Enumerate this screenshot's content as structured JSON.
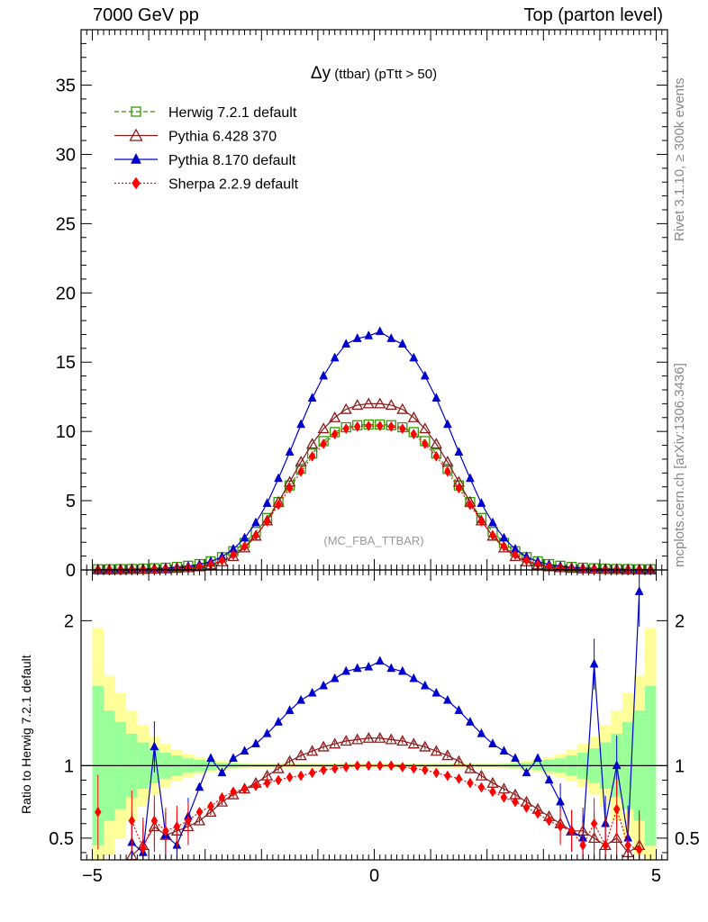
{
  "header": {
    "left": "7000 GeV pp",
    "right": "Top (parton level)"
  },
  "side_labels": {
    "rivet": "Rivet 3.1.10, ≥ 300k events",
    "mcplots": "mcplots.cern.ch [arXiv:1306.3436]"
  },
  "plot": {
    "title_symbol": "Δy",
    "title_rest": " (ttbar) (pTtt > 50)",
    "watermark": "(MC_FBA_TTBAR)",
    "ratio_ylabel": "Ratio to Herwig 7.2.1 default"
  },
  "chart_data": [
    {
      "type": "line",
      "panel": "main",
      "title": "Δy (ttbar) (pTtt > 50)",
      "xlabel": "",
      "ylabel": "",
      "xlim": [
        -5,
        5
      ],
      "ylim": [
        0,
        39
      ],
      "x_ticks": [
        "−5",
        "0",
        "5"
      ],
      "y_ticks": [
        "0",
        "5",
        "10",
        "15",
        "20",
        "25",
        "30",
        "35"
      ],
      "legend_position": "top-left",
      "x": [
        -4.9,
        -4.7,
        -4.5,
        -4.3,
        -4.1,
        -3.9,
        -3.7,
        -3.5,
        -3.3,
        -3.1,
        -2.9,
        -2.7,
        -2.5,
        -2.3,
        -2.1,
        -1.9,
        -1.7,
        -1.5,
        -1.3,
        -1.1,
        -0.9,
        -0.7,
        -0.5,
        -0.3,
        -0.1,
        0.1,
        0.3,
        0.5,
        0.7,
        0.9,
        1.1,
        1.3,
        1.5,
        1.7,
        1.9,
        2.1,
        2.3,
        2.5,
        2.7,
        2.9,
        3.1,
        3.3,
        3.5,
        3.7,
        3.9,
        4.1,
        4.3,
        4.5,
        4.7,
        4.9
      ],
      "series": [
        {
          "name": "Herwig 7.2.1 default",
          "color": "#339900",
          "marker": "open-square",
          "line": "dashed",
          "values": [
            0.05,
            0.05,
            0.06,
            0.07,
            0.09,
            0.12,
            0.16,
            0.22,
            0.3,
            0.42,
            0.62,
            0.92,
            1.35,
            1.95,
            2.75,
            3.75,
            4.9,
            6.1,
            7.3,
            8.4,
            9.3,
            9.95,
            10.3,
            10.45,
            10.5,
            10.5,
            10.45,
            10.3,
            9.95,
            9.3,
            8.4,
            7.3,
            6.1,
            4.9,
            3.75,
            2.75,
            1.95,
            1.35,
            0.92,
            0.62,
            0.42,
            0.3,
            0.22,
            0.16,
            0.12,
            0.09,
            0.07,
            0.06,
            0.05,
            0.05
          ]
        },
        {
          "name": "Pythia 6.428 370",
          "color": "#8b1a1a",
          "marker": "open-triangle",
          "line": "solid",
          "values": [
            0.02,
            0.02,
            0.03,
            0.04,
            0.05,
            0.07,
            0.09,
            0.12,
            0.17,
            0.24,
            0.37,
            0.6,
            0.98,
            1.6,
            2.45,
            3.55,
            4.9,
            6.35,
            7.8,
            9.1,
            10.2,
            11.0,
            11.6,
            11.9,
            12.0,
            12.0,
            11.9,
            11.6,
            11.0,
            10.2,
            9.1,
            7.8,
            6.35,
            4.9,
            3.55,
            2.45,
            1.6,
            0.98,
            0.6,
            0.37,
            0.24,
            0.17,
            0.12,
            0.09,
            0.07,
            0.05,
            0.04,
            0.03,
            0.02,
            0.02
          ]
        },
        {
          "name": "Pythia 8.170 default",
          "color": "#0000cc",
          "marker": "filled-triangle",
          "line": "solid",
          "values": [
            0.03,
            0.03,
            0.04,
            0.05,
            0.07,
            0.1,
            0.13,
            0.18,
            0.26,
            0.39,
            0.6,
            0.95,
            1.5,
            2.3,
            3.4,
            4.8,
            6.6,
            8.5,
            10.5,
            12.4,
            14.0,
            15.3,
            16.3,
            16.7,
            16.9,
            17.2,
            16.7,
            16.3,
            15.3,
            14.0,
            12.4,
            10.5,
            8.5,
            6.6,
            4.8,
            3.4,
            2.3,
            1.5,
            0.95,
            0.6,
            0.39,
            0.26,
            0.18,
            0.13,
            0.1,
            0.07,
            0.05,
            0.04,
            0.03,
            0.03
          ]
        },
        {
          "name": "Sherpa 2.2.9 default",
          "color": "#ff0000",
          "marker": "filled-diamond",
          "line": "dotted",
          "values": [
            0.03,
            0.02,
            0.02,
            0.03,
            0.04,
            0.06,
            0.08,
            0.1,
            0.15,
            0.24,
            0.4,
            0.7,
            1.1,
            1.7,
            2.5,
            3.5,
            4.7,
            5.9,
            7.1,
            8.2,
            9.1,
            9.8,
            10.2,
            10.35,
            10.4,
            10.4,
            10.35,
            10.2,
            9.8,
            9.1,
            8.2,
            7.1,
            5.9,
            4.7,
            3.5,
            2.5,
            1.7,
            1.1,
            0.7,
            0.4,
            0.24,
            0.15,
            0.1,
            0.08,
            0.06,
            0.04,
            0.03,
            0.02,
            0.02,
            0.03
          ]
        }
      ]
    },
    {
      "type": "line",
      "panel": "ratio",
      "ylabel": "Ratio to Herwig 7.2.1 default",
      "xlim": [
        -5,
        5
      ],
      "ylim": [
        0.35,
        2.35
      ],
      "x_ticks": [
        "−5",
        "0",
        "5"
      ],
      "y_ticks": [
        "0.5",
        "1",
        "2"
      ],
      "reference_line": 1,
      "x": [
        -4.9,
        -4.7,
        -4.5,
        -4.3,
        -4.1,
        -3.9,
        -3.7,
        -3.5,
        -3.3,
        -3.1,
        -2.9,
        -2.7,
        -2.5,
        -2.3,
        -2.1,
        -1.9,
        -1.7,
        -1.5,
        -1.3,
        -1.1,
        -0.9,
        -0.7,
        -0.5,
        -0.3,
        -0.1,
        0.1,
        0.3,
        0.5,
        0.7,
        0.9,
        1.1,
        1.3,
        1.5,
        1.7,
        1.9,
        2.1,
        2.3,
        2.5,
        2.7,
        2.9,
        3.1,
        3.3,
        3.5,
        3.7,
        3.9,
        4.1,
        4.3,
        4.5,
        4.7,
        4.9
      ],
      "band_inner_halfwidth": [
        0.55,
        0.38,
        0.3,
        0.22,
        0.16,
        0.12,
        0.09,
        0.07,
        0.05,
        0.04,
        0.03,
        0.02,
        0.015,
        0.012,
        0.01,
        0.01,
        0.01,
        0.01,
        0.01,
        0.01,
        0.01,
        0.01,
        0.01,
        0.01,
        0.01,
        0.01,
        0.01,
        0.01,
        0.01,
        0.01,
        0.01,
        0.01,
        0.01,
        0.01,
        0.01,
        0.01,
        0.012,
        0.015,
        0.02,
        0.03,
        0.04,
        0.05,
        0.07,
        0.09,
        0.12,
        0.16,
        0.22,
        0.3,
        0.38,
        0.55
      ],
      "band_outer_halfwidth": [
        0.95,
        0.62,
        0.5,
        0.38,
        0.28,
        0.2,
        0.15,
        0.11,
        0.08,
        0.06,
        0.045,
        0.035,
        0.025,
        0.02,
        0.015,
        0.015,
        0.015,
        0.015,
        0.015,
        0.015,
        0.015,
        0.015,
        0.015,
        0.015,
        0.015,
        0.015,
        0.015,
        0.015,
        0.015,
        0.015,
        0.015,
        0.015,
        0.015,
        0.015,
        0.015,
        0.015,
        0.02,
        0.025,
        0.035,
        0.045,
        0.06,
        0.08,
        0.11,
        0.15,
        0.2,
        0.28,
        0.38,
        0.5,
        0.62,
        0.95
      ],
      "series": [
        {
          "name": "Pythia 6.428 370",
          "color": "#8b1a1a",
          "marker": "open-triangle",
          "values": [
            null,
            null,
            null,
            0.38,
            0.45,
            0.58,
            0.52,
            0.55,
            0.58,
            0.62,
            0.68,
            0.75,
            0.8,
            0.84,
            0.88,
            0.93,
            0.98,
            1.03,
            1.07,
            1.1,
            1.13,
            1.15,
            1.17,
            1.18,
            1.19,
            1.19,
            1.18,
            1.17,
            1.15,
            1.13,
            1.1,
            1.07,
            1.03,
            0.98,
            0.93,
            0.88,
            0.84,
            0.8,
            0.75,
            0.7,
            0.65,
            0.6,
            0.55,
            0.55,
            0.5,
            0.45,
            0.5,
            0.4,
            0.45,
            null
          ]
        },
        {
          "name": "Pythia 8.170 default",
          "color": "#0000cc",
          "marker": "filled-triangle",
          "values": [
            null,
            null,
            null,
            0.47,
            0.4,
            1.13,
            0.52,
            0.45,
            0.65,
            0.85,
            1.05,
            0.95,
            1.05,
            1.1,
            1.15,
            1.22,
            1.3,
            1.38,
            1.45,
            1.5,
            1.55,
            1.6,
            1.65,
            1.67,
            1.68,
            1.72,
            1.67,
            1.65,
            1.6,
            1.55,
            1.5,
            1.45,
            1.38,
            1.3,
            1.22,
            1.15,
            1.1,
            1.05,
            0.95,
            1.05,
            0.9,
            0.75,
            0.55,
            0.5,
            1.7,
            0.6,
            1.0,
            0.5,
            2.2,
            null
          ]
        },
        {
          "name": "Sherpa 2.2.9 default",
          "color": "#ff0000",
          "marker": "filled-diamond",
          "values": [
            0.68,
            null,
            null,
            0.62,
            0.43,
            0.62,
            0.55,
            0.58,
            0.62,
            0.68,
            0.72,
            0.78,
            0.82,
            0.84,
            0.86,
            0.88,
            0.9,
            0.92,
            0.93,
            0.95,
            0.97,
            0.98,
            0.99,
            1.0,
            1.0,
            1.0,
            1.0,
            0.99,
            0.98,
            0.97,
            0.95,
            0.93,
            0.91,
            0.88,
            0.85,
            0.82,
            0.78,
            0.75,
            0.71,
            0.67,
            0.62,
            0.58,
            0.55,
            0.45,
            0.6,
            0.45,
            0.7,
            0.45,
            0.42,
            null
          ]
        }
      ]
    }
  ]
}
